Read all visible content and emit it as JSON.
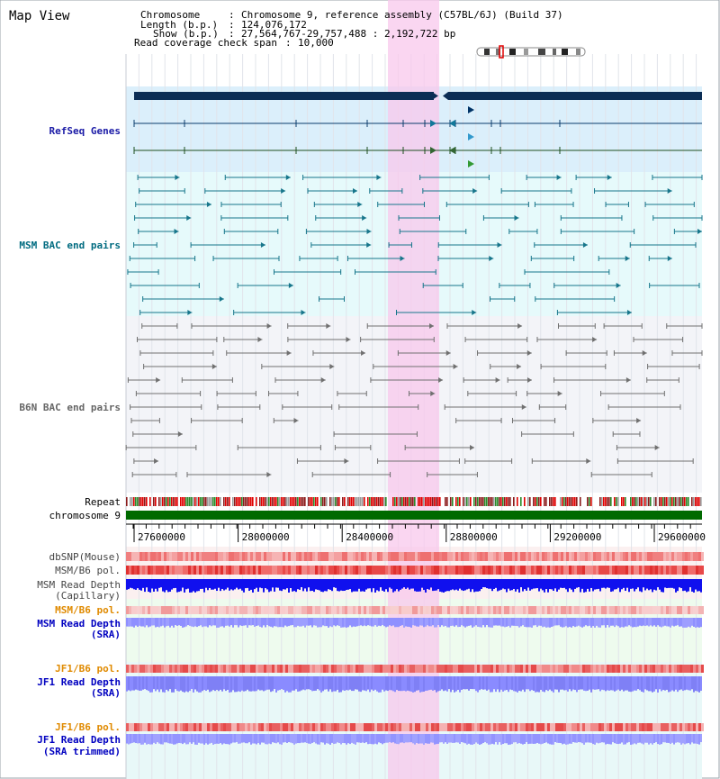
{
  "title": "Map View",
  "info": {
    "row1_key": "Chromosome",
    "row1_val": "Chromosome 9, reference assembly (C57BL/6J) (Build 37)",
    "row2_key": "Length (b.p.)",
    "row2_val": "124,076,172",
    "row3_key": "Show (b.p.)",
    "row3_val": "27,564,767-29,757,488 : 2,192,722 bp",
    "row4_key": "Read coverage check span",
    "row4_val": "10,000",
    "separator": ":"
  },
  "tracks": {
    "refseq": "RefSeq Genes",
    "msm_bac": "MSM BAC end pairs",
    "b6n_bac": "B6N BAC end pairs",
    "repeat": "Repeat",
    "chromosome": "chromosome 9",
    "dbsnp": "dbSNP(Mouse)",
    "msm_b6_pol_1": "MSM/B6 pol.",
    "msm_depth_cap_1": "MSM Read Depth",
    "msm_depth_cap_2": "(Capillary)",
    "msm_b6_pol_2": "MSM/B6 pol.",
    "msm_depth_sra_1": "MSM Read Depth",
    "msm_depth_sra_2": "(SRA)",
    "jf1_b6_pol_1": "JF1/B6 pol.",
    "jf1_depth_sra_1": "JF1 Read Depth",
    "jf1_depth_sra_2": "(SRA)",
    "jf1_b6_pol_2": "JF1/B6 pol.",
    "jf1_depth_trim_1": "JF1 Read Depth",
    "jf1_depth_trim_2": "(SRA trimmed)"
  },
  "axis_ticks": [
    "27600000",
    "28000000",
    "28400000",
    "28800000",
    "29200000",
    "29600000"
  ],
  "colors": {
    "refseq_label": "#1a1aa6",
    "msm_label": "#006b80",
    "b6n_label": "#666666",
    "orange_label": "#e08a00",
    "blue_label": "#0000c0",
    "highlight": "#f8c8ec",
    "chromosome_bar": "#006a00",
    "gene_dark": "#0b2d55"
  }
}
